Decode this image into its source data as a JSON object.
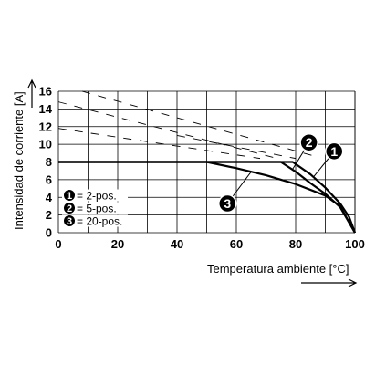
{
  "chart_data": {
    "type": "line",
    "xlabel": "Temperatura ambiente [°C]",
    "ylabel": "Intensidad de corriente [A]",
    "xlim": [
      0,
      100
    ],
    "ylim": [
      0,
      16
    ],
    "x_ticks": [
      0,
      20,
      40,
      60,
      80,
      100
    ],
    "y_ticks": [
      0,
      2,
      4,
      6,
      8,
      10,
      12,
      14,
      16
    ],
    "grid": true,
    "series": [
      {
        "name": "2-pos.",
        "marker": "1",
        "x": [
          0,
          79,
          85,
          90,
          95,
          98,
          100
        ],
        "y": [
          8,
          8,
          6.6,
          5.1,
          3.3,
          1.8,
          0
        ]
      },
      {
        "name": "5-pos.",
        "marker": "2",
        "x": [
          0,
          75,
          80,
          85,
          90,
          95,
          100
        ],
        "y": [
          8,
          8,
          6.9,
          5.6,
          4.4,
          2.9,
          0
        ]
      },
      {
        "name": "20-pos.",
        "marker": "3",
        "x": [
          0,
          50,
          60,
          70,
          80,
          90,
          95,
          100
        ],
        "y": [
          8,
          8,
          7.3,
          6.5,
          5.5,
          4.2,
          3.0,
          0
        ]
      }
    ],
    "dashed_lines": [
      {
        "x": [
          8,
          88
        ],
        "y": [
          16,
          8.5
        ]
      },
      {
        "x": [
          0,
          75
        ],
        "y": [
          14.8,
          8.3
        ]
      },
      {
        "x": [
          0,
          68
        ],
        "y": [
          11.8,
          8.4
        ]
      },
      {
        "x": [
          40,
          80
        ],
        "y": [
          11,
          8.4
        ]
      }
    ],
    "legend": [
      {
        "marker": "1",
        "label": "= 2-pos."
      },
      {
        "marker": "2",
        "label": "= 5-pos."
      },
      {
        "marker": "3",
        "label": "= 20-pos."
      }
    ],
    "callouts": [
      {
        "marker": "1",
        "x": 93,
        "y": 9.2,
        "target_x": 86,
        "target_y": 6.3
      },
      {
        "marker": "2",
        "x": 84.5,
        "y": 10.2,
        "target_x": 79,
        "target_y": 7.2
      },
      {
        "marker": "3",
        "x": 57,
        "y": 3.3,
        "target_x": 65,
        "target_y": 6.9
      }
    ]
  }
}
